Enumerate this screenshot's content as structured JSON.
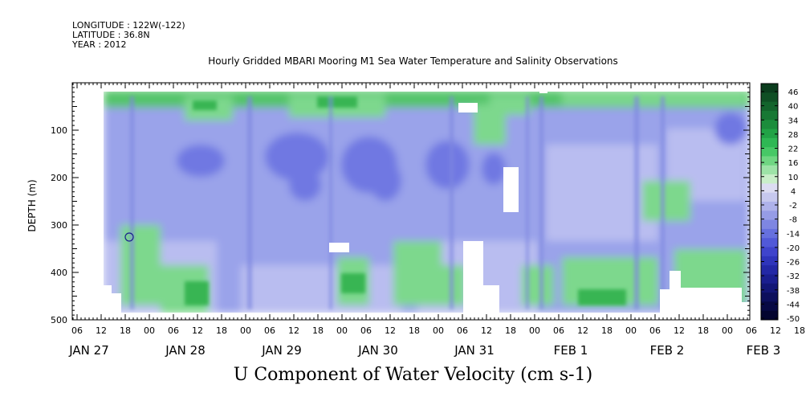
{
  "header": {
    "longitude": "LONGITUDE : 122W(-122)",
    "latitude": "LATITUDE : 36.8N",
    "year": "YEAR : 2012"
  },
  "chart_data": {
    "type": "heatmap",
    "title": "Hourly Gridded MBARI Mooring M1 Sea Water Temperature and Salinity Observations",
    "xlabel": "U Component of Water Velocity (cm s-1)",
    "ylabel": "DEPTH (m)",
    "y_range": [
      500,
      0
    ],
    "y_ticks": [
      100,
      200,
      300,
      400,
      500
    ],
    "x_range_hours": [
      0,
      180
    ],
    "x_tick_labels": [
      "06",
      "12",
      "18",
      "00",
      "06",
      "12",
      "18",
      "00",
      "06",
      "12",
      "18",
      "00",
      "06",
      "12",
      "18",
      "00",
      "06",
      "12",
      "18",
      "00",
      "06",
      "12",
      "18",
      "00",
      "06",
      "12",
      "18",
      "00",
      "06",
      "12",
      "18",
      "00"
    ],
    "date_labels": [
      "JAN 27",
      "JAN 28",
      "JAN 29",
      "JAN 30",
      "JAN 31",
      "FEB  1",
      "FEB  2",
      "FEB  3"
    ],
    "colorbar": {
      "labels": [
        "46",
        "40",
        "34",
        "28",
        "22",
        "16",
        "10",
        "4",
        "-2",
        "-8",
        "-14",
        "-20",
        "-26",
        "-32",
        "-38",
        "-44",
        "-50"
      ],
      "colors": [
        "#0b3d1d",
        "#0f4f24",
        "#13642c",
        "#177834",
        "#1c8d3c",
        "#22a346",
        "#2fb854",
        "#47c866",
        "#6fd682",
        "#9de3a7",
        "#c9eec9",
        "#dcdcf2",
        "#c6c8ee",
        "#aeb2ea",
        "#969ce6",
        "#7e86e2",
        "#6670de",
        "#5159d8",
        "#3f44cc",
        "#2f35bb",
        "#2328a6",
        "#1a1e8f",
        "#121676",
        "#0c0f5c",
        "#070944",
        "#03042f"
      ]
    },
    "grid": false
  }
}
